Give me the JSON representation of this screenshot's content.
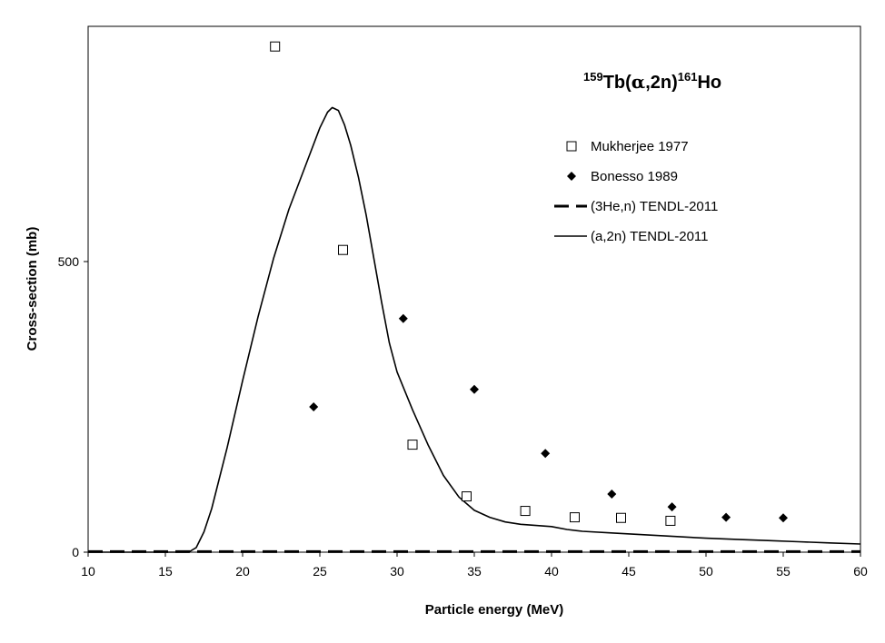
{
  "chart_data": {
    "type": "scatter",
    "title": {
      "pre": "159",
      "sym1": "Tb(",
      "alpha": "α",
      "sym2": ",2n)",
      "post": "161",
      "sym3": "Ho"
    },
    "xlabel": "Particle energy (MeV)",
    "ylabel": "Cross-section (mb)",
    "xlim": [
      10,
      60
    ],
    "ylim": [
      0,
      900
    ],
    "xticks": [
      10,
      15,
      20,
      25,
      30,
      35,
      40,
      45,
      50,
      55,
      60
    ],
    "yticks": [
      0,
      500
    ],
    "grid": false,
    "legend_position": "top-right",
    "series": [
      {
        "name": "Mukherjee 1977",
        "kind": "markers",
        "marker": "open-square",
        "color": "#000000",
        "x": [
          22.1,
          26.5,
          31.0,
          34.5,
          38.3,
          41.5,
          44.5,
          47.7
        ],
        "y": [
          870,
          520,
          185,
          96,
          71,
          60,
          59,
          54
        ]
      },
      {
        "name": "Bonesso 1989",
        "kind": "markers",
        "marker": "filled-diamond",
        "color": "#000000",
        "x": [
          24.6,
          30.4,
          35.0,
          39.6,
          43.9,
          47.8,
          51.3,
          55.0
        ],
        "y": [
          250,
          402,
          280,
          170,
          100,
          78,
          60,
          59
        ]
      },
      {
        "name": "(3He,n) TENDL-2011",
        "kind": "line",
        "dash": "dashed",
        "color": "#000000",
        "x": [
          10,
          60
        ],
        "y": [
          1,
          1
        ]
      },
      {
        "name": "(a,2n) TENDL-2011",
        "kind": "line",
        "dash": "solid",
        "color": "#000000",
        "x": [
          10,
          16.5,
          17,
          17.5,
          18,
          19,
          20,
          21,
          22,
          23,
          24,
          25,
          25.5,
          25.8,
          26.2,
          26.6,
          27,
          27.5,
          28,
          28.5,
          29,
          29.5,
          30,
          31,
          32,
          33,
          34,
          35,
          36,
          37,
          38,
          39,
          40,
          41,
          42,
          44,
          46,
          48,
          50,
          52,
          54,
          56,
          58,
          60
        ],
        "y": [
          0,
          0,
          8,
          35,
          75,
          180,
          295,
          405,
          505,
          590,
          660,
          730,
          757,
          765,
          760,
          735,
          700,
          645,
          580,
          505,
          430,
          360,
          310,
          245,
          185,
          132,
          95,
          72,
          60,
          52,
          48,
          46,
          44,
          39,
          36,
          33,
          30,
          27,
          24,
          22,
          20,
          18,
          16,
          14
        ]
      }
    ]
  }
}
